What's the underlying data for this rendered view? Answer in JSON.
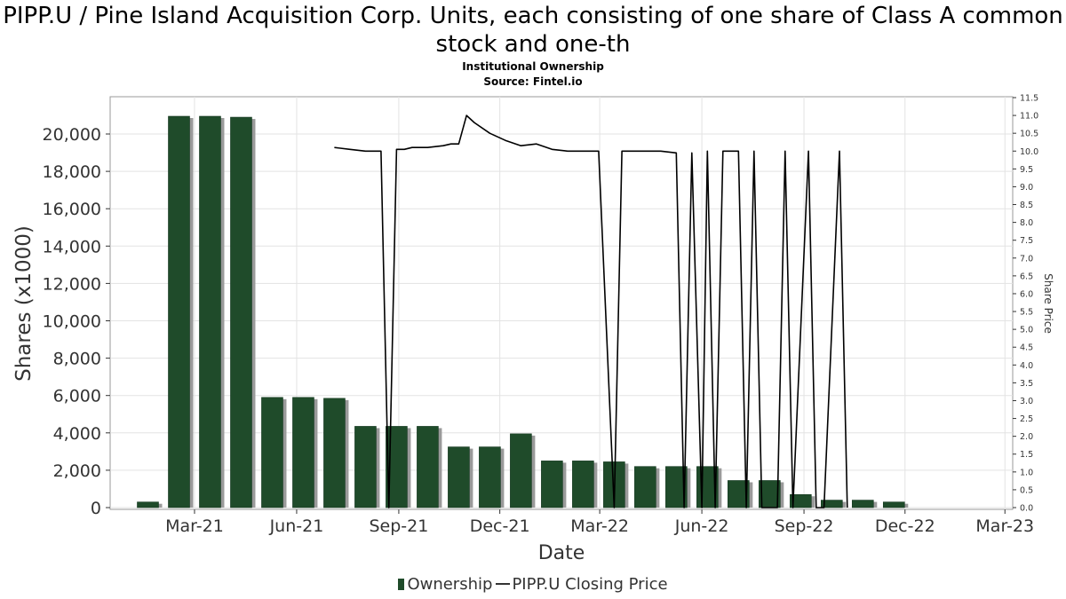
{
  "chart_data": {
    "type": "bar",
    "title": "PIPP.U / Pine Island Acquisition Corp. Units, each consisting of one share of Class A common stock and one-th",
    "subtitle": "Institutional Ownership",
    "source": "Source: Fintel.io",
    "xlabel": "Date",
    "ylabel": "Shares (x1000)",
    "y2label": "Share Price",
    "ylim": [
      0,
      22000
    ],
    "y2lim": [
      0,
      11.5
    ],
    "grid": true,
    "legend_position": "bottom",
    "x_ticks": [
      "Mar-21",
      "Jun-21",
      "Sep-21",
      "Dec-21",
      "Mar-22",
      "Jun-22",
      "Sep-22",
      "Dec-22",
      "Mar-23"
    ],
    "y_ticks": [
      "0",
      "2,000",
      "4,000",
      "6,000",
      "8,000",
      "10,000",
      "12,000",
      "14,000",
      "16,000",
      "18,000",
      "20,000"
    ],
    "y2_ticks": [
      "0.0",
      "0.5",
      "1.0",
      "1.5",
      "2.0",
      "2.5",
      "3.0",
      "3.5",
      "4.0",
      "4.5",
      "5.0",
      "5.5",
      "6.0",
      "6.5",
      "7.0",
      "7.5",
      "8.0",
      "8.5",
      "9.0",
      "9.5",
      "10.0",
      "10.5",
      "11.0",
      "11.5"
    ],
    "series": [
      {
        "name": "Ownership",
        "color": "#1f4b2a",
        "x": [
          "2021-01-18",
          "2021-02-15",
          "2021-03-15",
          "2021-04-12",
          "2021-05-10",
          "2021-06-07",
          "2021-07-05",
          "2021-08-02",
          "2021-08-30",
          "2021-09-27",
          "2021-10-25",
          "2021-11-22",
          "2021-12-20",
          "2022-01-17",
          "2022-02-14",
          "2022-03-14",
          "2022-04-11",
          "2022-05-09",
          "2022-06-06",
          "2022-07-04",
          "2022-08-01",
          "2022-08-29",
          "2022-09-26",
          "2022-10-24",
          "2022-11-21",
          "2022-12-19",
          "2023-01-16"
        ],
        "values": [
          300,
          20950,
          20950,
          20900,
          5900,
          5900,
          5850,
          4350,
          4350,
          4350,
          3250,
          3250,
          3950,
          2500,
          2500,
          2450,
          2200,
          2200,
          2200,
          1450,
          1450,
          700,
          400,
          400,
          300,
          0,
          0
        ]
      },
      {
        "name": "PIPP.U Closing Price",
        "color": "#000000",
        "x": [
          "2021-07-05",
          "2021-07-19",
          "2021-08-02",
          "2021-08-16",
          "2021-08-23",
          "2021-08-30",
          "2021-09-06",
          "2021-09-13",
          "2021-09-27",
          "2021-10-11",
          "2021-10-18",
          "2021-10-25",
          "2021-11-01",
          "2021-11-08",
          "2021-11-22",
          "2021-12-06",
          "2021-12-20",
          "2022-01-03",
          "2022-01-17",
          "2022-01-31",
          "2022-02-14",
          "2022-02-28",
          "2022-03-14",
          "2022-03-21",
          "2022-03-28",
          "2022-04-11",
          "2022-04-25",
          "2022-05-09",
          "2022-05-16",
          "2022-05-23",
          "2022-06-01",
          "2022-06-06",
          "2022-06-13",
          "2022-06-20",
          "2022-07-04",
          "2022-07-11",
          "2022-07-18",
          "2022-07-25",
          "2022-08-08",
          "2022-08-15",
          "2022-08-22",
          "2022-09-05",
          "2022-09-12",
          "2022-09-19",
          "2022-10-03",
          "2022-10-10"
        ],
        "values": [
          10.1,
          10.05,
          10.0,
          10.0,
          0.0,
          10.05,
          10.05,
          10.1,
          10.1,
          10.15,
          10.2,
          10.2,
          11.0,
          10.8,
          10.5,
          10.3,
          10.15,
          10.2,
          10.05,
          10.0,
          10.0,
          10.0,
          0.0,
          10.0,
          10.0,
          10.0,
          10.0,
          9.95,
          0.0,
          9.95,
          0.0,
          10.0,
          0.0,
          10.0,
          10.0,
          0.0,
          10.0,
          0.0,
          0.0,
          10.0,
          0.0,
          10.0,
          0.0,
          0.0,
          10.0,
          0.0
        ]
      }
    ]
  },
  "legend": {
    "ownership_label": "Ownership",
    "price_label": "PIPP.U Closing Price"
  }
}
